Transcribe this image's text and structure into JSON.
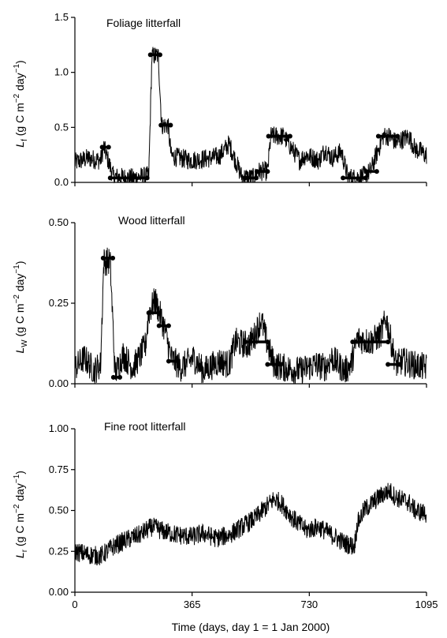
{
  "chart_data": [
    {
      "type": "line",
      "title": "Foliage litterfall",
      "ylabel_main": "L",
      "ylabel_sub": "f",
      "ylabel_unit_a": " (g C m",
      "ylabel_exp_a": "−2",
      "ylabel_unit_b": " day",
      "ylabel_exp_b": "−1",
      "ylabel_close": ")",
      "ylim": [
        0,
        1.5
      ],
      "yticks": [
        0.0,
        0.5,
        1.0,
        1.5
      ],
      "ytick_labels": [
        "0.0",
        "0.5",
        "1.0",
        "1.5"
      ],
      "xlim": [
        0,
        1095
      ],
      "xticks": [
        0,
        365,
        730,
        1095
      ],
      "line_color": "#000000",
      "series": [
        {
          "kind": "model",
          "x": [
            0,
            40,
            80,
            90,
            120,
            180,
            230,
            240,
            260,
            270,
            290,
            300,
            360,
            420,
            450,
            480,
            520,
            560,
            570,
            600,
            610,
            650,
            700,
            720,
            760,
            780,
            800,
            820,
            830,
            850,
            870,
            900,
            920,
            960,
            980,
            1000,
            1040,
            1060,
            1080,
            1090
          ],
          "y": [
            0.18,
            0.22,
            0.2,
            0.32,
            0.05,
            0.04,
            0.06,
            1.15,
            1.15,
            0.52,
            0.52,
            0.24,
            0.2,
            0.22,
            0.24,
            0.35,
            0.05,
            0.04,
            0.1,
            0.1,
            0.42,
            0.42,
            0.2,
            0.25,
            0.2,
            0.3,
            0.22,
            0.26,
            0.28,
            0.05,
            0.04,
            0.06,
            0.1,
            0.42,
            0.42,
            0.36,
            0.42,
            0.3,
            0.28,
            0.25
          ]
        },
        {
          "kind": "observed",
          "segments": [
            {
              "x0": 85,
              "x1": 105,
              "y": 0.32
            },
            {
              "x0": 110,
              "x1": 225,
              "y": 0.04
            },
            {
              "x0": 235,
              "x1": 265,
              "y": 1.16
            },
            {
              "x0": 268,
              "x1": 298,
              "y": 0.52
            },
            {
              "x0": 530,
              "x1": 565,
              "y": 0.04
            },
            {
              "x0": 567,
              "x1": 600,
              "y": 0.1
            },
            {
              "x0": 603,
              "x1": 670,
              "y": 0.42
            },
            {
              "x0": 835,
              "x1": 905,
              "y": 0.04
            },
            {
              "x0": 907,
              "x1": 940,
              "y": 0.1
            },
            {
              "x0": 945,
              "x1": 1005,
              "y": 0.42
            }
          ]
        }
      ]
    },
    {
      "type": "line",
      "title": "Wood litterfall",
      "ylabel_main": "L",
      "ylabel_sub": "W",
      "ylabel_unit_a": " (g C m",
      "ylabel_exp_a": "−2",
      "ylabel_unit_b": " day",
      "ylabel_exp_b": "−1",
      "ylabel_close": ")",
      "ylim": [
        0,
        0.5
      ],
      "yticks": [
        0.0,
        0.25,
        0.5
      ],
      "ytick_labels": [
        "0.00",
        "0.25",
        "0.50"
      ],
      "xlim": [
        0,
        1095
      ],
      "xticks": [
        0,
        365,
        730,
        1095
      ],
      "line_color": "#000000",
      "series": [
        {
          "kind": "model",
          "x": [
            0,
            30,
            60,
            80,
            90,
            110,
            125,
            150,
            180,
            200,
            220,
            230,
            250,
            270,
            280,
            300,
            330,
            370,
            400,
            450,
            480,
            500,
            540,
            560,
            580,
            600,
            620,
            650,
            700,
            750,
            780,
            800,
            840,
            860,
            880,
            920,
            950,
            970,
            1000,
            1020,
            1050,
            1095
          ],
          "y": [
            0.05,
            0.08,
            0.04,
            0.06,
            0.38,
            0.38,
            0.03,
            0.09,
            0.05,
            0.08,
            0.12,
            0.22,
            0.26,
            0.2,
            0.17,
            0.08,
            0.05,
            0.08,
            0.04,
            0.07,
            0.06,
            0.13,
            0.12,
            0.15,
            0.2,
            0.12,
            0.06,
            0.05,
            0.04,
            0.06,
            0.05,
            0.08,
            0.04,
            0.06,
            0.14,
            0.13,
            0.15,
            0.2,
            0.06,
            0.07,
            0.06,
            0.05
          ]
        },
        {
          "kind": "observed",
          "segments": [
            {
              "x0": 88,
              "x1": 118,
              "y": 0.39
            },
            {
              "x0": 120,
              "x1": 140,
              "y": 0.02
            },
            {
              "x0": 230,
              "x1": 262,
              "y": 0.22
            },
            {
              "x0": 262,
              "x1": 292,
              "y": 0.18
            },
            {
              "x0": 292,
              "x1": 320,
              "y": 0.07
            },
            {
              "x0": 530,
              "x1": 600,
              "y": 0.13
            },
            {
              "x0": 600,
              "x1": 640,
              "y": 0.06
            },
            {
              "x0": 865,
              "x1": 975,
              "y": 0.13
            },
            {
              "x0": 975,
              "x1": 1010,
              "y": 0.06
            }
          ]
        }
      ]
    },
    {
      "type": "line",
      "title": "Fine root litterfall",
      "ylabel_main": "L",
      "ylabel_sub": "r",
      "ylabel_unit_a": " (g C m",
      "ylabel_exp_a": "−2",
      "ylabel_unit_b": " day",
      "ylabel_exp_b": "−1",
      "ylabel_close": ")",
      "ylim": [
        0,
        1.0
      ],
      "yticks": [
        0.0,
        0.25,
        0.5,
        0.75,
        1.0
      ],
      "ytick_labels": [
        "0.00",
        "0.25",
        "0.50",
        "0.75",
        "1.00"
      ],
      "xlim": [
        0,
        1095
      ],
      "xticks": [
        0,
        365,
        730,
        1095
      ],
      "xtick_labels": [
        "0",
        "365",
        "730",
        "1095"
      ],
      "xlabel": "Time (days, day 1 = 1 Jan 2000)",
      "line_color": "#000000",
      "series": [
        {
          "kind": "model",
          "x": [
            0,
            40,
            80,
            120,
            160,
            200,
            240,
            280,
            320,
            365,
            400,
            440,
            480,
            520,
            560,
            600,
            620,
            640,
            680,
            720,
            760,
            800,
            840,
            870,
            880,
            900,
            940,
            960,
            980,
            1000,
            1040,
            1060,
            1095
          ],
          "y": [
            0.25,
            0.23,
            0.22,
            0.28,
            0.32,
            0.35,
            0.4,
            0.37,
            0.35,
            0.34,
            0.36,
            0.33,
            0.35,
            0.4,
            0.45,
            0.53,
            0.57,
            0.55,
            0.45,
            0.38,
            0.4,
            0.35,
            0.3,
            0.28,
            0.42,
            0.5,
            0.57,
            0.6,
            0.62,
            0.58,
            0.55,
            0.5,
            0.48
          ]
        }
      ]
    }
  ]
}
